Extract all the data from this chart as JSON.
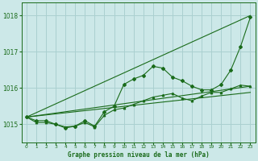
{
  "title": "Graphe pression niveau de la mer (hPa)",
  "bg_color": "#cce8e8",
  "grid_color": "#aad0d0",
  "line_color": "#1a6b1a",
  "x_min": -0.5,
  "x_max": 23.5,
  "y_min": 1014.5,
  "y_max": 1018.35,
  "yticks": [
    1015,
    1016,
    1017,
    1018
  ],
  "xticks": [
    0,
    1,
    2,
    3,
    4,
    5,
    6,
    7,
    8,
    9,
    10,
    11,
    12,
    13,
    14,
    15,
    16,
    17,
    18,
    19,
    20,
    21,
    22,
    23
  ],
  "series1": [
    1015.2,
    1015.1,
    1015.1,
    1015.0,
    1014.9,
    1014.95,
    1015.1,
    1014.95,
    1015.35,
    1015.5,
    1016.1,
    1016.25,
    1016.35,
    1016.6,
    1016.55,
    1016.3,
    1016.2,
    1016.05,
    1015.95,
    1015.95,
    1016.1,
    1016.5,
    1017.15,
    1017.95
  ],
  "series2": [
    1015.2,
    1015.05,
    1015.05,
    1015.0,
    1014.93,
    1014.95,
    1015.05,
    1014.93,
    1015.25,
    1015.4,
    1015.45,
    1015.55,
    1015.65,
    1015.75,
    1015.8,
    1015.85,
    1015.72,
    1015.65,
    1015.78,
    1015.88,
    1015.88,
    1015.98,
    1016.08,
    1016.05
  ],
  "series3_x": [
    0,
    23
  ],
  "series3_y": [
    1015.2,
    1016.05
  ],
  "series4_x": [
    0,
    23
  ],
  "series4_y": [
    1015.2,
    1015.88
  ],
  "series5_x": [
    0,
    23
  ],
  "series5_y": [
    1015.2,
    1018.0
  ]
}
